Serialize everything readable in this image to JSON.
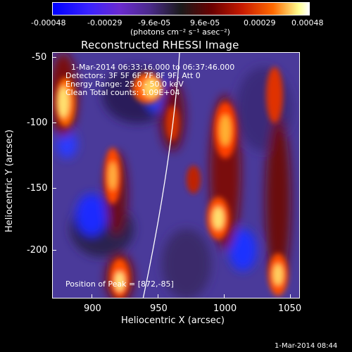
{
  "colorbar": {
    "tick_labels": [
      "-0.00048",
      "-0.00029",
      "-9.6e-05",
      "9.6e-05",
      "0.00029",
      "0.00048"
    ],
    "units": "(photons cm⁻² s⁻¹ asec⁻²)",
    "colors": [
      "#0000ff",
      "#6a2ad0",
      "#4a2a8a",
      "#1a1a1a",
      "#6a0000",
      "#c81a00",
      "#ff6a00",
      "#ffff90",
      "#ffffff"
    ]
  },
  "plot": {
    "title": "Reconstructed RHESSI Image",
    "annotations": {
      "time": "1-Mar-2014 06:33:16.000 to 06:37:46.000",
      "detectors": "Detectors: 3F 5F 6F 7F 8F 9F, Att 0",
      "energy": "Energy Range: 25.0 - 50.0 keV",
      "clean": "Clean    Total counts: 1.09E+04",
      "peak": "Position of Peak = [872,-85]"
    },
    "x_label": "Heliocentric X (arcsec)",
    "y_label": "Heliocentric Y (arcsec)",
    "x_ticks": [
      "900",
      "950",
      "1000",
      "1050"
    ],
    "y_ticks": [
      "-50",
      "-100",
      "-150",
      "-200"
    ]
  },
  "footer": {
    "timestamp": "1-Mar-2014 08:44"
  }
}
